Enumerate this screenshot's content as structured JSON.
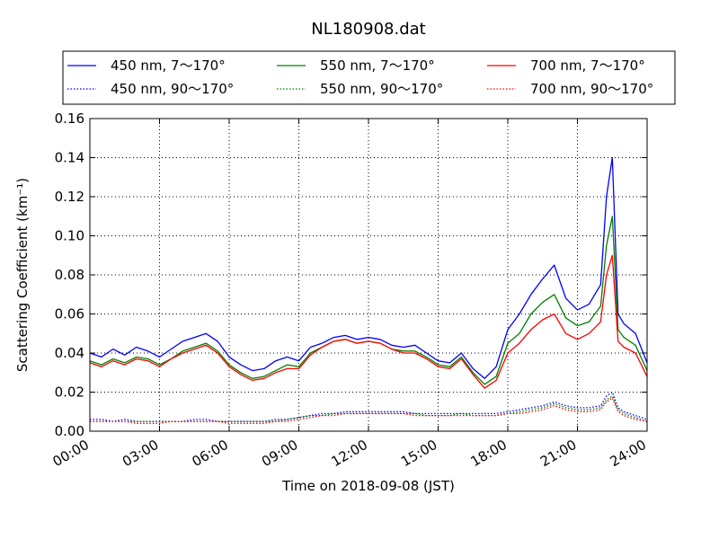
{
  "chart_data": {
    "type": "line",
    "title": "NL180908.dat",
    "xlabel": "Time on 2018-09-08 (JST)",
    "ylabel": "Scattering Coefficient (km⁻¹)",
    "x_unit": "hours",
    "xlim": [
      0,
      24
    ],
    "ylim": [
      0,
      0.16
    ],
    "grid": true,
    "legend_position": "top (above plot)",
    "x_ticks": [
      "00:00",
      "03:00",
      "06:00",
      "09:00",
      "12:00",
      "15:00",
      "18:00",
      "21:00",
      "24:00"
    ],
    "y_ticks": [
      "0.00",
      "0.02",
      "0.04",
      "0.06",
      "0.08",
      "0.10",
      "0.12",
      "0.14",
      "0.16"
    ],
    "x": [
      0,
      0.5,
      1,
      1.5,
      2,
      2.5,
      3,
      3.5,
      4,
      4.5,
      5,
      5.5,
      6,
      6.5,
      7,
      7.5,
      8,
      8.5,
      9,
      9.5,
      10,
      10.5,
      11,
      11.5,
      12,
      12.5,
      13,
      13.5,
      14,
      14.5,
      15,
      15.5,
      16,
      16.5,
      17,
      17.5,
      18,
      18.5,
      19,
      19.5,
      20,
      20.5,
      21,
      21.5,
      22,
      22.25,
      22.5,
      22.75,
      23,
      23.5,
      24
    ],
    "series": [
      {
        "name": "450 nm, 7～170°",
        "color": "#0000ff",
        "style": "solid",
        "values": [
          0.04,
          0.038,
          0.042,
          0.039,
          0.043,
          0.041,
          0.038,
          0.042,
          0.046,
          0.048,
          0.05,
          0.046,
          0.038,
          0.034,
          0.031,
          0.032,
          0.036,
          0.038,
          0.036,
          0.043,
          0.045,
          0.048,
          0.049,
          0.047,
          0.048,
          0.047,
          0.044,
          0.043,
          0.044,
          0.04,
          0.036,
          0.035,
          0.04,
          0.032,
          0.027,
          0.033,
          0.052,
          0.06,
          0.07,
          0.078,
          0.085,
          0.068,
          0.062,
          0.065,
          0.075,
          0.12,
          0.14,
          0.06,
          0.055,
          0.05,
          0.035
        ]
      },
      {
        "name": "550 nm, 7～170°",
        "color": "#008000",
        "style": "solid",
        "values": [
          0.036,
          0.034,
          0.037,
          0.035,
          0.038,
          0.037,
          0.034,
          0.037,
          0.041,
          0.043,
          0.045,
          0.041,
          0.034,
          0.03,
          0.027,
          0.028,
          0.031,
          0.034,
          0.033,
          0.04,
          0.043,
          0.046,
          0.047,
          0.045,
          0.046,
          0.045,
          0.042,
          0.041,
          0.041,
          0.038,
          0.034,
          0.033,
          0.038,
          0.03,
          0.024,
          0.028,
          0.045,
          0.05,
          0.06,
          0.066,
          0.07,
          0.058,
          0.054,
          0.056,
          0.064,
          0.095,
          0.11,
          0.052,
          0.048,
          0.044,
          0.031
        ]
      },
      {
        "name": "700 nm, 7～170°",
        "color": "#ff0000",
        "style": "solid",
        "values": [
          0.035,
          0.033,
          0.036,
          0.034,
          0.037,
          0.036,
          0.033,
          0.037,
          0.04,
          0.042,
          0.044,
          0.04,
          0.033,
          0.029,
          0.026,
          0.027,
          0.03,
          0.032,
          0.032,
          0.039,
          0.043,
          0.046,
          0.047,
          0.045,
          0.046,
          0.045,
          0.042,
          0.04,
          0.04,
          0.037,
          0.033,
          0.032,
          0.037,
          0.029,
          0.022,
          0.026,
          0.04,
          0.045,
          0.052,
          0.057,
          0.06,
          0.05,
          0.047,
          0.05,
          0.056,
          0.08,
          0.09,
          0.046,
          0.043,
          0.04,
          0.028
        ]
      },
      {
        "name": "450 nm, 90～170°",
        "color": "#0000ff",
        "style": "dotted",
        "values": [
          0.006,
          0.006,
          0.005,
          0.006,
          0.005,
          0.005,
          0.005,
          0.005,
          0.005,
          0.006,
          0.006,
          0.005,
          0.005,
          0.005,
          0.005,
          0.005,
          0.006,
          0.006,
          0.007,
          0.008,
          0.009,
          0.009,
          0.01,
          0.01,
          0.01,
          0.01,
          0.01,
          0.01,
          0.009,
          0.009,
          0.009,
          0.009,
          0.009,
          0.009,
          0.009,
          0.009,
          0.01,
          0.011,
          0.012,
          0.013,
          0.015,
          0.013,
          0.012,
          0.012,
          0.013,
          0.018,
          0.02,
          0.012,
          0.01,
          0.008,
          0.006
        ]
      },
      {
        "name": "550 nm, 90～170°",
        "color": "#008000",
        "style": "dotted",
        "values": [
          0.005,
          0.005,
          0.005,
          0.005,
          0.005,
          0.005,
          0.005,
          0.005,
          0.005,
          0.005,
          0.005,
          0.005,
          0.005,
          0.005,
          0.005,
          0.005,
          0.005,
          0.006,
          0.007,
          0.008,
          0.008,
          0.009,
          0.009,
          0.009,
          0.009,
          0.009,
          0.009,
          0.009,
          0.009,
          0.008,
          0.008,
          0.008,
          0.009,
          0.008,
          0.008,
          0.008,
          0.009,
          0.01,
          0.011,
          0.012,
          0.014,
          0.012,
          0.011,
          0.011,
          0.012,
          0.016,
          0.018,
          0.011,
          0.009,
          0.007,
          0.005
        ]
      },
      {
        "name": "700 nm, 90～170°",
        "color": "#ff0000",
        "style": "dotted",
        "values": [
          0.005,
          0.005,
          0.005,
          0.005,
          0.004,
          0.004,
          0.004,
          0.005,
          0.005,
          0.005,
          0.005,
          0.005,
          0.004,
          0.004,
          0.004,
          0.004,
          0.005,
          0.005,
          0.006,
          0.007,
          0.008,
          0.008,
          0.009,
          0.009,
          0.009,
          0.009,
          0.009,
          0.009,
          0.008,
          0.008,
          0.008,
          0.008,
          0.008,
          0.008,
          0.008,
          0.008,
          0.009,
          0.009,
          0.01,
          0.011,
          0.013,
          0.011,
          0.01,
          0.01,
          0.011,
          0.015,
          0.017,
          0.01,
          0.008,
          0.006,
          0.005
        ]
      }
    ]
  }
}
